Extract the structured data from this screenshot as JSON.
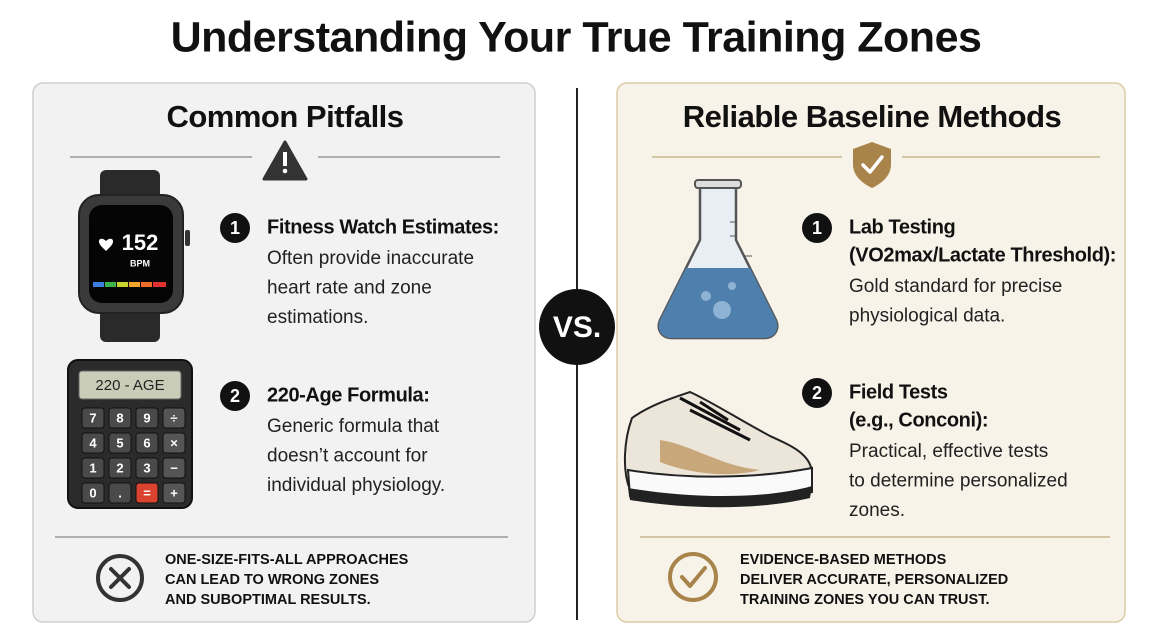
{
  "title": "Understanding Your True Training Zones",
  "vs": "VS.",
  "left": {
    "heading": "Common Pitfalls",
    "items": [
      {
        "number": "1",
        "title": [
          "Fitness Watch Estimates:"
        ],
        "body": [
          "Often provide inaccurate",
          "heart rate and zone",
          "estimations."
        ]
      },
      {
        "number": "2",
        "title": [
          "220-Age Formula:"
        ],
        "body": [
          "Generic formula that",
          "doesn’t account for",
          "individual physiology."
        ]
      }
    ],
    "footer": [
      "ONE-SIZE-FITS-ALL APPROACHES",
      "CAN LEAD TO WRONG ZONES",
      "AND SUBOPTIMAL RESULTS."
    ]
  },
  "right": {
    "heading": "Reliable Baseline Methods",
    "items": [
      {
        "number": "1",
        "title": [
          "Lab Testing",
          "(VO2max/Lactate Threshold):"
        ],
        "body": [
          "Gold standard for precise",
          "physiological data."
        ]
      },
      {
        "number": "2",
        "title": [
          "Field Tests",
          "(e.g., Conconi):"
        ],
        "body": [
          "Practical, effective tests",
          "to determine personalized",
          "zones."
        ]
      }
    ],
    "footer": [
      "EVIDENCE-BASED METHODS",
      "DELIVER ACCURATE, PERSONALIZED",
      "TRAINING ZONES YOU CAN TRUST."
    ]
  },
  "watch": {
    "value": "152",
    "unit": "BPM"
  },
  "calculator": {
    "display": "220 - AGE",
    "keys": [
      [
        "7",
        "8",
        "9",
        "÷"
      ],
      [
        "4",
        "5",
        "6",
        "×"
      ],
      [
        "1",
        "2",
        "3",
        "−"
      ],
      [
        "0",
        ".",
        "=",
        "+"
      ]
    ]
  }
}
